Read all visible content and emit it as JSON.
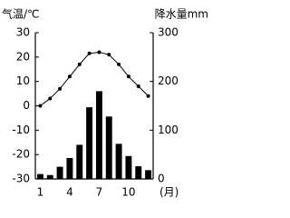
{
  "chart_data": {
    "type": "combo",
    "y_label": "气温/℃",
    "y2_label": "降水量mm",
    "x_label": "(月)",
    "categories": [
      "1",
      null,
      null,
      "4",
      null,
      null,
      "7",
      null,
      null,
      "10",
      null,
      null
    ],
    "ylim": [
      -30,
      30
    ],
    "yticks": [
      -30,
      -20,
      -10,
      0,
      10,
      20,
      30
    ],
    "y2lim": [
      0,
      300
    ],
    "y2ticks": [
      0,
      100,
      200,
      300
    ],
    "series": [
      {
        "type": "line",
        "color": "#000000",
        "values": [
          0,
          3,
          7,
          12,
          17,
          21.5,
          22,
          21,
          17,
          12,
          8,
          4
        ]
      },
      {
        "type": "bar",
        "axis": "y2",
        "color": "#000000",
        "values": [
          10,
          8,
          25,
          43,
          70,
          147,
          180,
          128,
          72,
          47,
          26,
          18
        ]
      }
    ]
  }
}
